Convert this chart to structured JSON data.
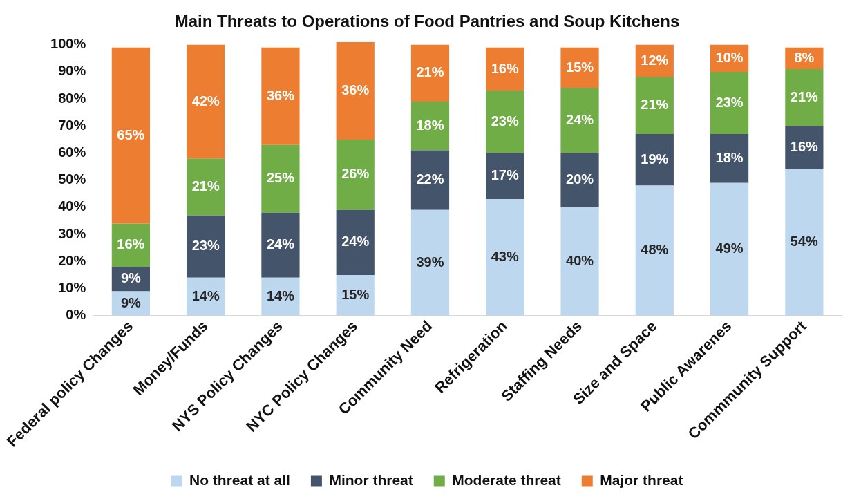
{
  "chart_data": {
    "type": "bar",
    "title": "Main Threats to Operations of Food Pantries and Soup Kitchens",
    "stacked": true,
    "categories": [
      "Federal policy Changes",
      "Money/Funds",
      "NYS Policy Changes",
      "NYC Policy Changes",
      "Community Need",
      "Refrigeration",
      "Staffing Needs",
      "Size and Space",
      "Public Awarenes",
      "Commmunity Support"
    ],
    "series": [
      {
        "name": "No threat at all",
        "color": "#bdd7ee",
        "values": [
          9,
          14,
          14,
          15,
          39,
          43,
          40,
          48,
          49,
          54
        ],
        "value_labels": [
          "9%",
          "14%",
          "14%",
          "15%",
          "39%",
          "43%",
          "40%",
          "48%",
          "49%",
          "54%"
        ]
      },
      {
        "name": "Minor threat",
        "color": "#44546a",
        "values": [
          9,
          23,
          24,
          24,
          22,
          17,
          20,
          19,
          18,
          16
        ],
        "value_labels": [
          "9%",
          "23%",
          "24%",
          "24%",
          "22%",
          "17%",
          "20%",
          "19%",
          "18%",
          "16%"
        ]
      },
      {
        "name": "Moderate threat",
        "color": "#70ad47",
        "values": [
          16,
          21,
          25,
          26,
          18,
          23,
          24,
          21,
          23,
          21
        ],
        "value_labels": [
          "16%",
          "21%",
          "25%",
          "26%",
          "18%",
          "23%",
          "24%",
          "21%",
          "23%",
          "21%"
        ]
      },
      {
        "name": "Major threat",
        "color": "#ed7d31",
        "values": [
          65,
          42,
          36,
          36,
          21,
          16,
          15,
          12,
          10,
          8
        ],
        "value_labels": [
          "65%",
          "42%",
          "36%",
          "36%",
          "21%",
          "16%",
          "15%",
          "12%",
          "10%",
          "8%"
        ]
      }
    ],
    "ylim": [
      0,
      101
    ],
    "yticks": [
      {
        "value": 0,
        "label": "0%"
      },
      {
        "value": 10,
        "label": "10%"
      },
      {
        "value": 20,
        "label": "20%"
      },
      {
        "value": 30,
        "label": "30%"
      },
      {
        "value": 40,
        "label": "40%"
      },
      {
        "value": 50,
        "label": "50%"
      },
      {
        "value": 60,
        "label": "60%"
      },
      {
        "value": 70,
        "label": "70%"
      },
      {
        "value": 80,
        "label": "80%"
      },
      {
        "value": 90,
        "label": "90%"
      },
      {
        "value": 100,
        "label": "100%"
      }
    ],
    "grid": false,
    "legend": "bottom"
  }
}
